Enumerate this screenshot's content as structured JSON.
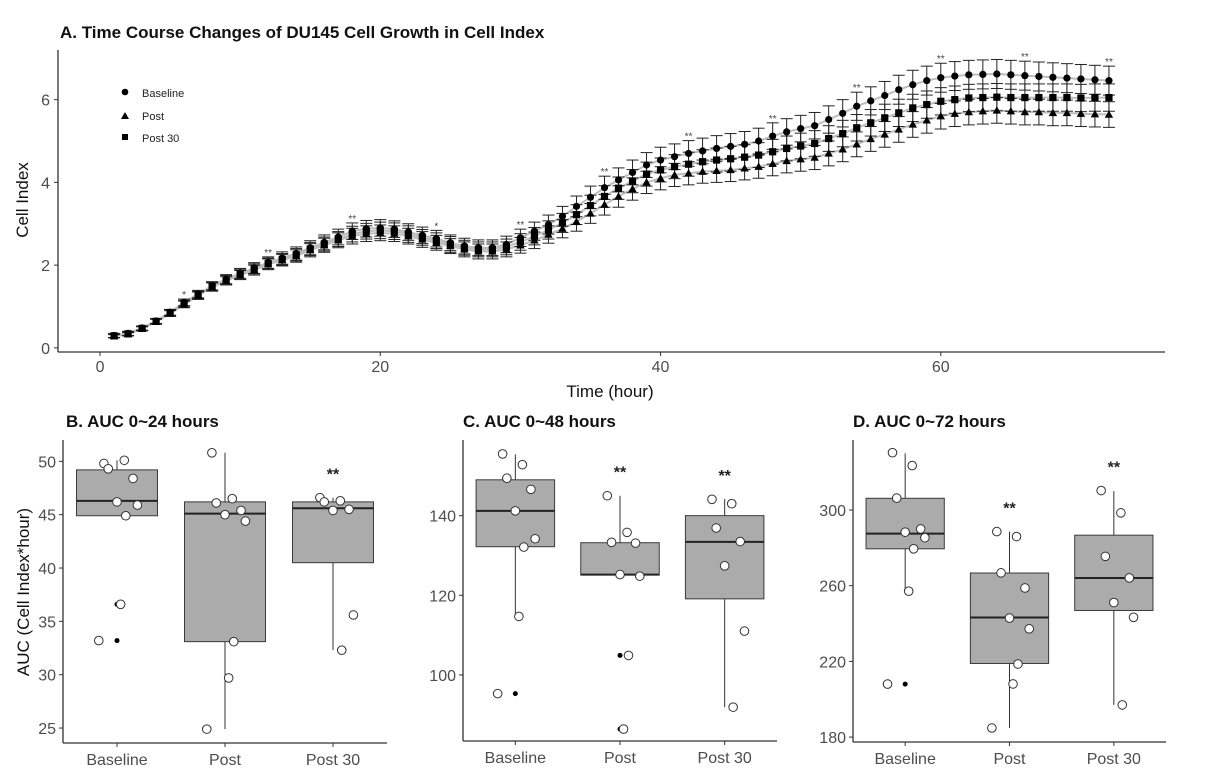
{
  "chart_data": [
    {
      "type": "line",
      "title": "A. Time Course Changes of DU145 Cell Growth in Cell Index",
      "xlabel": "Time (hour)",
      "ylabel": "Cell Index",
      "xlim": [
        -3,
        76
      ],
      "ylim": [
        -0.1,
        7.2
      ],
      "xticks": [
        0,
        20,
        40,
        60
      ],
      "yticks": [
        0,
        2,
        4,
        6
      ],
      "grid": false,
      "legend": {
        "position": "top-left",
        "entries": [
          {
            "label": "Baseline",
            "marker": "circle"
          },
          {
            "label": "Post",
            "marker": "triangle"
          },
          {
            "label": "Post 30",
            "marker": "square"
          }
        ]
      },
      "x": [
        1,
        2,
        3,
        4,
        5,
        6,
        7,
        8,
        9,
        10,
        11,
        12,
        13,
        14,
        15,
        16,
        17,
        18,
        19,
        20,
        21,
        22,
        23,
        24,
        25,
        26,
        27,
        28,
        29,
        30,
        31,
        32,
        33,
        34,
        35,
        36,
        37,
        38,
        39,
        40,
        41,
        42,
        43,
        44,
        45,
        46,
        47,
        48,
        49,
        50,
        51,
        52,
        53,
        54,
        55,
        56,
        57,
        58,
        59,
        60,
        61,
        62,
        63,
        64,
        65,
        66,
        67,
        68,
        69,
        70,
        71,
        72
      ],
      "series": [
        {
          "name": "Baseline",
          "marker": "circle",
          "values": [
            0.3,
            0.35,
            0.48,
            0.65,
            0.86,
            1.1,
            1.3,
            1.5,
            1.66,
            1.8,
            1.93,
            2.06,
            2.17,
            2.28,
            2.42,
            2.55,
            2.68,
            2.82,
            2.88,
            2.9,
            2.87,
            2.8,
            2.72,
            2.64,
            2.54,
            2.46,
            2.42,
            2.42,
            2.5,
            2.66,
            2.82,
            2.98,
            3.18,
            3.42,
            3.64,
            3.87,
            4.06,
            4.24,
            4.42,
            4.54,
            4.62,
            4.7,
            4.76,
            4.82,
            4.87,
            4.92,
            5.0,
            5.12,
            5.22,
            5.3,
            5.37,
            5.52,
            5.67,
            5.84,
            5.97,
            6.1,
            6.24,
            6.36,
            6.46,
            6.53,
            6.57,
            6.6,
            6.61,
            6.62,
            6.6,
            6.58,
            6.56,
            6.54,
            6.52,
            6.5,
            6.48,
            6.46
          ],
          "errors": [
            0.05,
            0.05,
            0.05,
            0.06,
            0.07,
            0.08,
            0.09,
            0.1,
            0.11,
            0.12,
            0.13,
            0.14,
            0.15,
            0.16,
            0.17,
            0.18,
            0.19,
            0.2,
            0.2,
            0.2,
            0.2,
            0.2,
            0.2,
            0.2,
            0.19,
            0.19,
            0.19,
            0.19,
            0.2,
            0.21,
            0.22,
            0.23,
            0.24,
            0.25,
            0.27,
            0.28,
            0.29,
            0.3,
            0.3,
            0.31,
            0.31,
            0.31,
            0.31,
            0.31,
            0.31,
            0.31,
            0.31,
            0.32,
            0.32,
            0.32,
            0.32,
            0.33,
            0.33,
            0.34,
            0.34,
            0.34,
            0.35,
            0.35,
            0.35,
            0.35,
            0.35,
            0.35,
            0.35,
            0.35,
            0.35,
            0.35,
            0.35,
            0.35,
            0.35,
            0.35,
            0.35,
            0.35
          ]
        },
        {
          "name": "Post",
          "marker": "triangle",
          "values": [
            0.28,
            0.33,
            0.46,
            0.63,
            0.83,
            1.05,
            1.26,
            1.47,
            1.62,
            1.76,
            1.88,
            2.02,
            2.12,
            2.22,
            2.36,
            2.48,
            2.6,
            2.7,
            2.76,
            2.78,
            2.76,
            2.7,
            2.62,
            2.54,
            2.46,
            2.38,
            2.33,
            2.33,
            2.38,
            2.48,
            2.6,
            2.74,
            2.88,
            3.05,
            3.25,
            3.46,
            3.66,
            3.84,
            4.0,
            4.1,
            4.18,
            4.22,
            4.26,
            4.28,
            4.3,
            4.34,
            4.38,
            4.45,
            4.52,
            4.56,
            4.6,
            4.7,
            4.8,
            4.92,
            5.05,
            5.16,
            5.28,
            5.4,
            5.5,
            5.6,
            5.66,
            5.7,
            5.72,
            5.74,
            5.72,
            5.7,
            5.7,
            5.68,
            5.68,
            5.66,
            5.65,
            5.64
          ],
          "errors": [
            0.04,
            0.04,
            0.05,
            0.06,
            0.07,
            0.08,
            0.09,
            0.1,
            0.1,
            0.11,
            0.12,
            0.13,
            0.14,
            0.15,
            0.16,
            0.17,
            0.18,
            0.19,
            0.19,
            0.19,
            0.19,
            0.19,
            0.19,
            0.18,
            0.18,
            0.18,
            0.18,
            0.18,
            0.18,
            0.19,
            0.2,
            0.21,
            0.22,
            0.23,
            0.24,
            0.25,
            0.26,
            0.27,
            0.27,
            0.28,
            0.28,
            0.28,
            0.28,
            0.28,
            0.28,
            0.28,
            0.28,
            0.29,
            0.29,
            0.29,
            0.29,
            0.3,
            0.3,
            0.3,
            0.3,
            0.31,
            0.31,
            0.31,
            0.31,
            0.31,
            0.31,
            0.31,
            0.31,
            0.31,
            0.31,
            0.31,
            0.31,
            0.31,
            0.31,
            0.31,
            0.31,
            0.31
          ]
        },
        {
          "name": "Post 30",
          "marker": "square",
          "values": [
            0.29,
            0.34,
            0.47,
            0.64,
            0.85,
            1.07,
            1.28,
            1.48,
            1.64,
            1.78,
            1.91,
            2.04,
            2.14,
            2.25,
            2.39,
            2.51,
            2.63,
            2.75,
            2.82,
            2.84,
            2.82,
            2.75,
            2.67,
            2.59,
            2.5,
            2.42,
            2.38,
            2.38,
            2.44,
            2.56,
            2.7,
            2.85,
            3.02,
            3.22,
            3.44,
            3.66,
            3.86,
            4.03,
            4.2,
            4.3,
            4.38,
            4.44,
            4.5,
            4.54,
            4.57,
            4.61,
            4.66,
            4.74,
            4.82,
            4.88,
            4.94,
            5.06,
            5.18,
            5.32,
            5.44,
            5.56,
            5.68,
            5.8,
            5.88,
            5.96,
            6.0,
            6.04,
            6.05,
            6.06,
            6.05,
            6.05,
            6.05,
            6.05,
            6.05,
            6.04,
            6.05,
            6.05
          ],
          "errors": [
            0.04,
            0.05,
            0.05,
            0.06,
            0.07,
            0.08,
            0.09,
            0.1,
            0.11,
            0.12,
            0.12,
            0.13,
            0.14,
            0.15,
            0.16,
            0.17,
            0.18,
            0.19,
            0.19,
            0.2,
            0.2,
            0.2,
            0.19,
            0.19,
            0.19,
            0.18,
            0.18,
            0.18,
            0.19,
            0.2,
            0.21,
            0.22,
            0.23,
            0.24,
            0.25,
            0.26,
            0.27,
            0.28,
            0.29,
            0.29,
            0.29,
            0.29,
            0.29,
            0.29,
            0.3,
            0.3,
            0.3,
            0.3,
            0.3,
            0.31,
            0.31,
            0.31,
            0.32,
            0.32,
            0.32,
            0.33,
            0.33,
            0.33,
            0.33,
            0.33,
            0.33,
            0.33,
            0.33,
            0.33,
            0.33,
            0.33,
            0.33,
            0.33,
            0.33,
            0.33,
            0.33,
            0.33
          ]
        }
      ],
      "annotations": [
        {
          "x": 6,
          "text": "*"
        },
        {
          "x": 12,
          "text": "**"
        },
        {
          "x": 18,
          "text": "**"
        },
        {
          "x": 24,
          "text": "*"
        },
        {
          "x": 30,
          "text": "**"
        },
        {
          "x": 36,
          "text": "**"
        },
        {
          "x": 42,
          "text": "**"
        },
        {
          "x": 48,
          "text": "**"
        },
        {
          "x": 54,
          "text": "**"
        },
        {
          "x": 60,
          "text": "**"
        },
        {
          "x": 66,
          "text": "**"
        },
        {
          "x": 72,
          "text": "**"
        }
      ]
    },
    {
      "type": "box",
      "title": "B. AUC 0~24 hours",
      "ylabel": "AUC (Cell Index*hour)",
      "xlabel": "",
      "ylim": [
        23.6,
        52
      ],
      "yticks": [
        25,
        30,
        35,
        40,
        45,
        50
      ],
      "categories": [
        "Baseline",
        "Post",
        "Post 30"
      ],
      "boxes": [
        {
          "q1": 44.9,
          "median": 46.3,
          "q3": 49.2,
          "whisker_low": 44.9,
          "whisker_high": 50.1,
          "outliers": [
            36.6,
            33.2
          ]
        },
        {
          "q1": 33.1,
          "median": 45.1,
          "q3": 46.2,
          "whisker_low": 24.9,
          "whisker_high": 50.8,
          "outliers": []
        },
        {
          "q1": 40.5,
          "median": 45.6,
          "q3": 46.2,
          "whisker_low": 32.3,
          "whisker_high": 46.6,
          "outliers": []
        }
      ],
      "points": [
        [
          49.8,
          50.1,
          49.3,
          48.4,
          46.2,
          45.9,
          44.9,
          36.6,
          33.2
        ],
        [
          50.8,
          46.5,
          46.1,
          45.4,
          45.0,
          44.4,
          33.1,
          29.7,
          24.9
        ],
        [
          46.6,
          46.3,
          46.2,
          45.5,
          45.4,
          35.6,
          32.3
        ]
      ],
      "annotations": [
        {
          "category": "Post 30",
          "text": "**"
        }
      ]
    },
    {
      "type": "box",
      "title": "C. AUC 0~48 hours",
      "ylabel": "",
      "xlabel": "",
      "ylim": [
        83.4,
        159
      ],
      "yticks": [
        100,
        120,
        140
      ],
      "categories": [
        "Baseline",
        "Post",
        "Post 30"
      ],
      "boxes": [
        {
          "q1": 132.2,
          "median": 141.2,
          "q3": 149.0,
          "whisker_low": 114.9,
          "whisker_high": 155.4,
          "outliers": [
            95.3
          ]
        },
        {
          "q1": 125.1,
          "median": 125.2,
          "q3": 133.2,
          "whisker_low": 125.1,
          "whisker_high": 145.0,
          "outliers": [
            104.9,
            86.4
          ]
        },
        {
          "q1": 119.1,
          "median": 133.4,
          "q3": 140.0,
          "whisker_low": 91.9,
          "whisker_high": 144.2,
          "outliers": []
        }
      ],
      "points": [
        [
          155.5,
          152.8,
          149.4,
          146.6,
          141.2,
          134.2,
          132.1,
          114.7,
          95.3
        ],
        [
          145.0,
          135.8,
          133.3,
          133.1,
          125.2,
          124.8,
          104.9,
          86.4
        ],
        [
          144.1,
          143.0,
          136.9,
          133.5,
          127.4,
          111.0,
          91.9
        ]
      ],
      "annotations": [
        {
          "category": "Post",
          "text": "**"
        },
        {
          "category": "Post 30",
          "text": "**"
        }
      ]
    },
    {
      "type": "box",
      "title": "D. AUC 0~72 hours",
      "ylabel": "",
      "xlabel": "",
      "ylim": [
        177.4,
        337
      ],
      "yticks": [
        180,
        220,
        260,
        300
      ],
      "categories": [
        "Baseline",
        "Post",
        "Post 30"
      ],
      "boxes": [
        {
          "q1": 279.5,
          "median": 287.5,
          "q3": 306.2,
          "whisker_low": 257.0,
          "whisker_high": 330.0,
          "outliers": [
            208.0
          ]
        },
        {
          "q1": 218.9,
          "median": 243.2,
          "q3": 266.7,
          "whisker_low": 184.7,
          "whisker_high": 288.6,
          "outliers": []
        },
        {
          "q1": 246.9,
          "median": 264.1,
          "q3": 286.7,
          "whisker_low": 197.0,
          "whisker_high": 310.0,
          "outliers": []
        }
      ],
      "points": [
        [
          330.3,
          323.5,
          306.3,
          290.0,
          288.3,
          285.4,
          279.5,
          257.1,
          208.0
        ],
        [
          288.6,
          286.0,
          266.8,
          258.8,
          242.9,
          237.2,
          218.6,
          208.1,
          184.8
        ],
        [
          310.3,
          298.5,
          275.5,
          264.1,
          251.1,
          243.3,
          197.0
        ]
      ],
      "annotations": [
        {
          "category": "Post",
          "text": "**"
        },
        {
          "category": "Post 30",
          "text": "**"
        }
      ]
    }
  ],
  "colors": {
    "ink": "#000000",
    "axis": "#333333",
    "tick_text": "#4d4d4d",
    "connector_line": "#bdbdbd",
    "box_fill": "#ababab",
    "box_border": "#3a3a3a"
  }
}
